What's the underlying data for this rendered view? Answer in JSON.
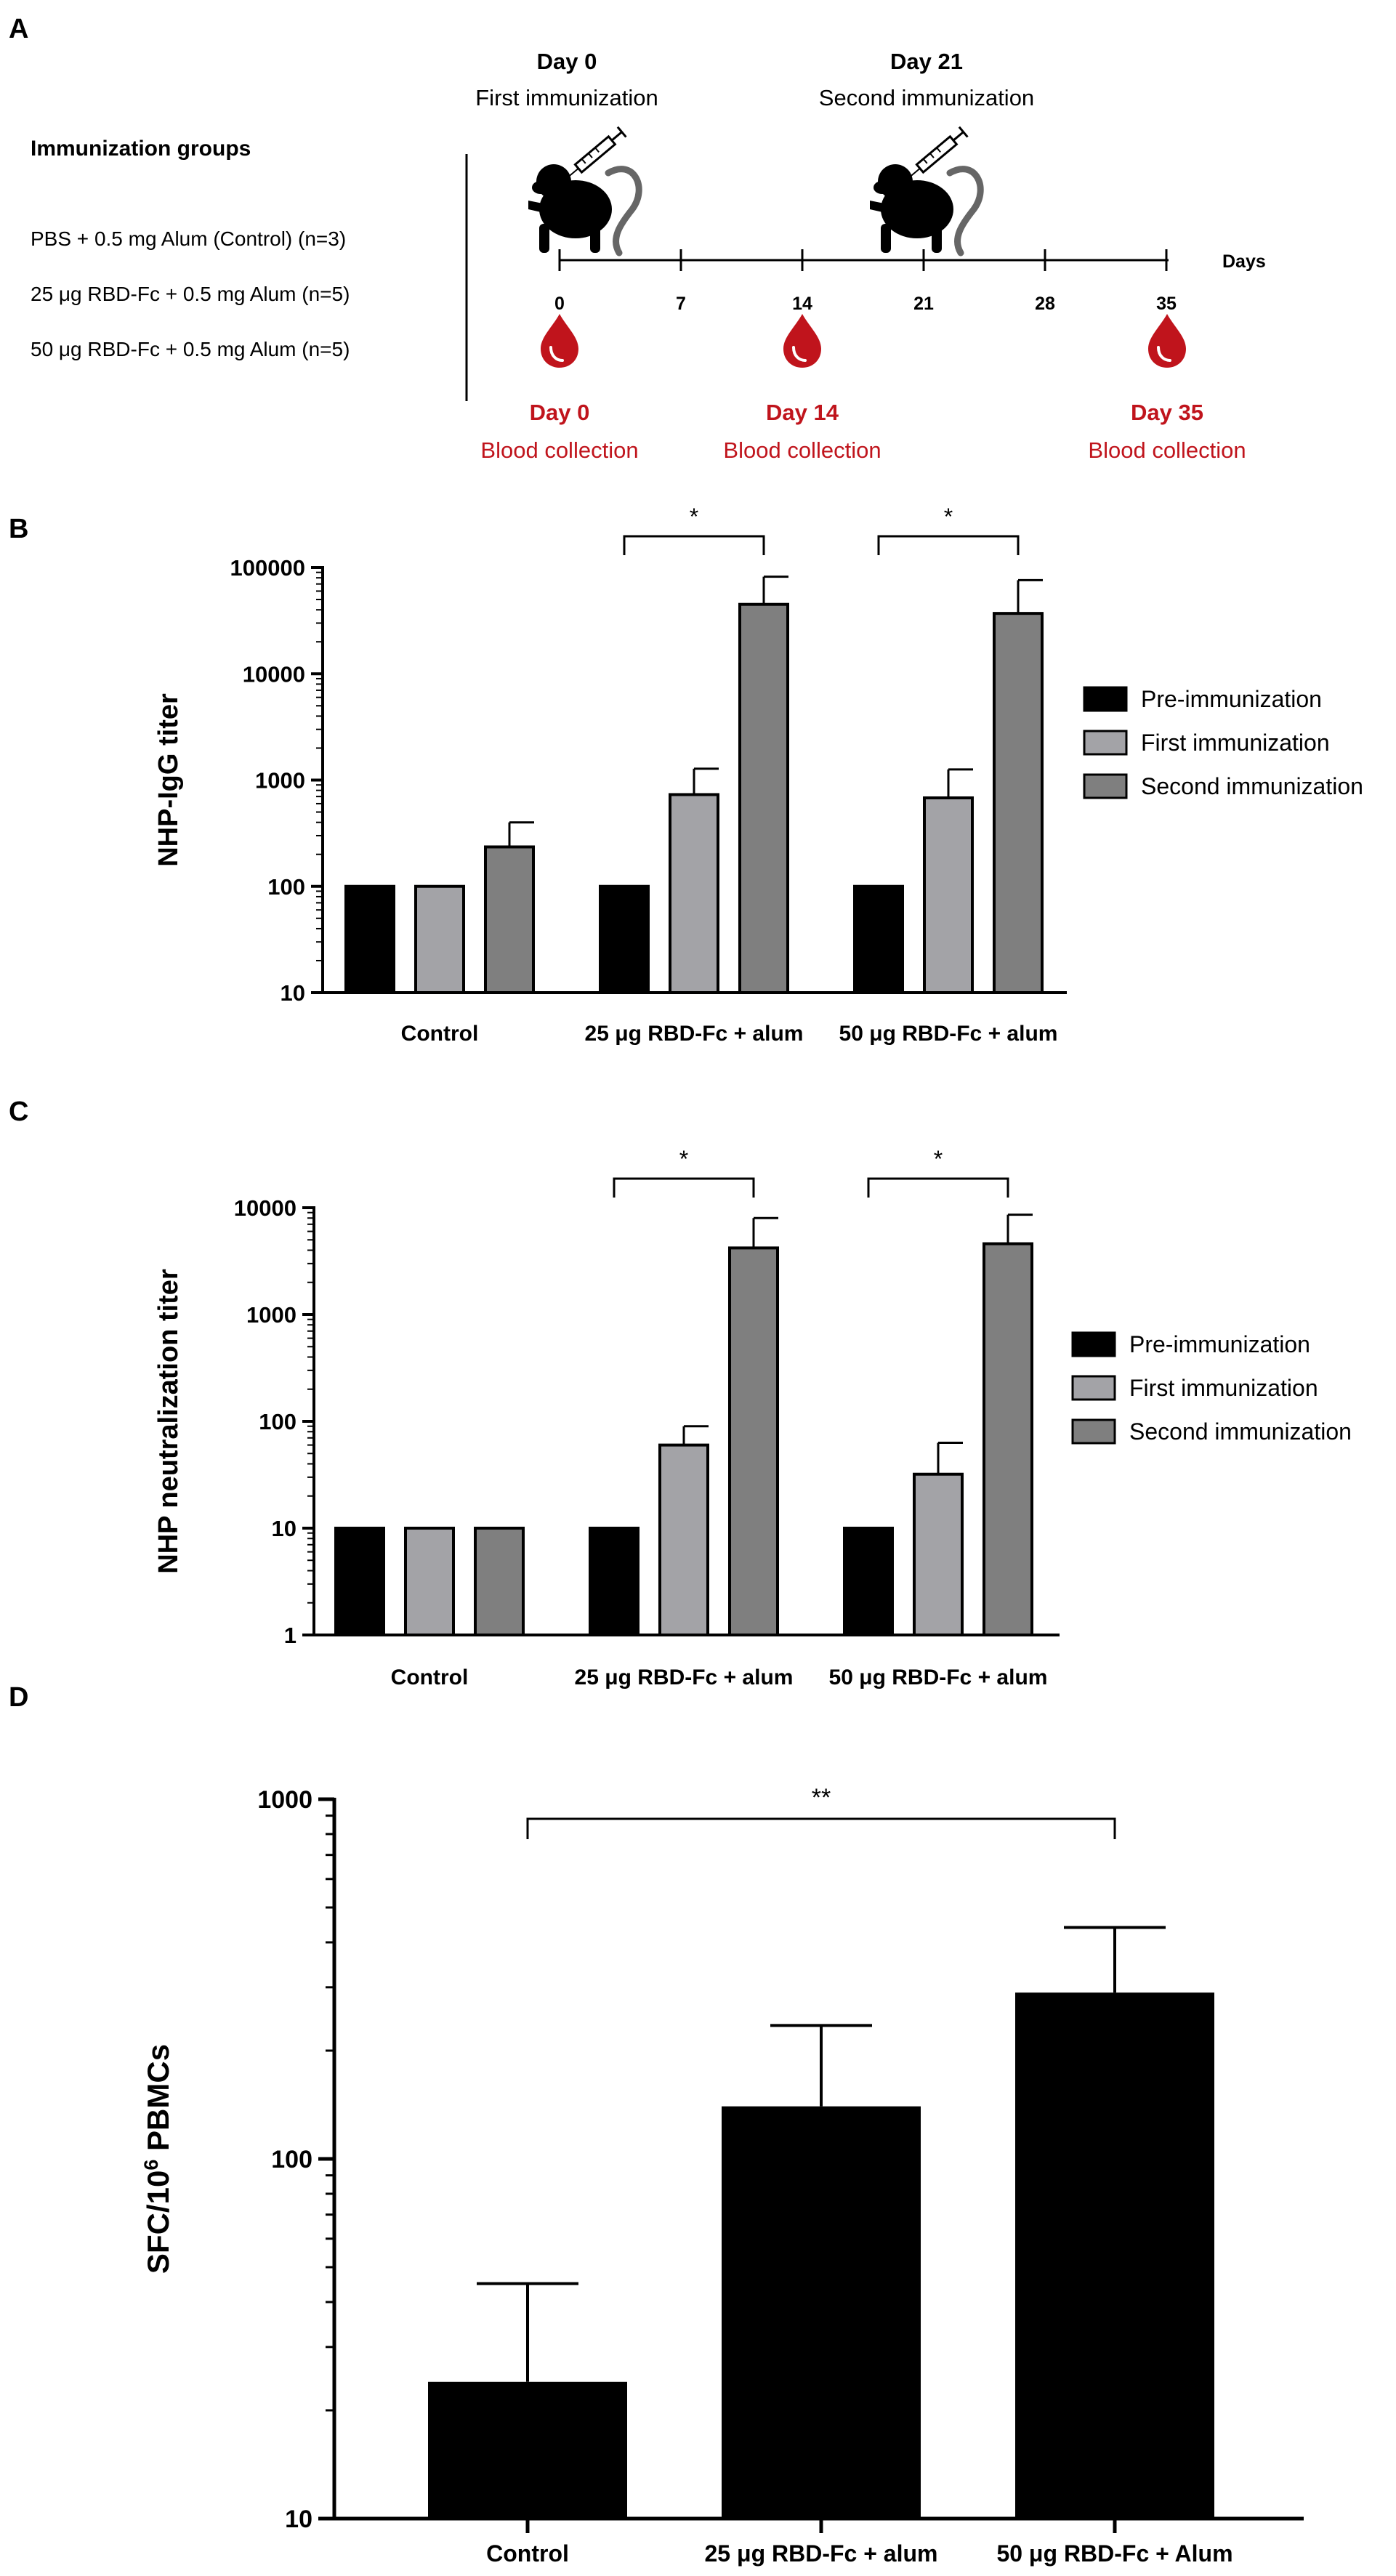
{
  "panels": {
    "a": {
      "letter": "A",
      "groups_title": "Immunization groups",
      "groups": [
        "PBS + 0.5 mg Alum (Control) (n=3)",
        "25 μg RBD-Fc + 0.5 mg Alum (n=5)",
        "50 μg RBD-Fc + 0.5 mg Alum (n=5)"
      ],
      "immunizations": [
        {
          "day": "Day 0",
          "label": "First immunization"
        },
        {
          "day": "Day 21",
          "label": "Second immunization"
        }
      ],
      "timeline_ticks": [
        "0",
        "7",
        "14",
        "21",
        "28",
        "35"
      ],
      "timeline_unit": "Days",
      "collections": [
        {
          "day": "Day 0",
          "label": "Blood collection"
        },
        {
          "day": "Day 14",
          "label": "Blood collection"
        },
        {
          "day": "Day 35",
          "label": "Blood collection"
        }
      ],
      "icons": [
        "monkey-syringe-icon",
        "blood-drop-icon"
      ],
      "colors": {
        "blood": "#c0141c"
      }
    },
    "b": {
      "letter": "B"
    },
    "c": {
      "letter": "C"
    },
    "d": {
      "letter": "D"
    }
  },
  "chart_data": [
    {
      "type": "bar",
      "scale": "log",
      "ylabel": "NHP-IgG titer",
      "ylim": [
        10,
        100000
      ],
      "yticks": [
        "10",
        "100",
        "1000",
        "10000",
        "100000"
      ],
      "categories": [
        "Control",
        "25 μg RBD-Fc + alum",
        "50 μg RBD-Fc + alum"
      ],
      "series": [
        {
          "name": "Pre-immunization",
          "color": "#000000",
          "values": [
            100,
            100,
            100
          ],
          "errors": [
            null,
            null,
            null
          ]
        },
        {
          "name": "First immunization",
          "color": "#a3a3a7",
          "values": [
            100,
            730,
            680
          ],
          "errors": [
            null,
            1280,
            1260
          ]
        },
        {
          "name": "Second immunization",
          "color": "#7f7f7f",
          "values": [
            235,
            45000,
            37000
          ],
          "errors": [
            400,
            82000,
            76000
          ]
        }
      ],
      "significance": [
        {
          "group": 1,
          "label": "*"
        },
        {
          "group": 2,
          "label": "*"
        }
      ],
      "legend": "right"
    },
    {
      "type": "bar",
      "scale": "log",
      "ylabel": "NHP neutralization titer",
      "ylim": [
        1,
        10000
      ],
      "yticks": [
        "1",
        "10",
        "100",
        "1000",
        "10000"
      ],
      "categories": [
        "Control",
        "25 μg RBD-Fc + alum",
        "50 μg RBD-Fc + alum"
      ],
      "series": [
        {
          "name": "Pre-immunization",
          "color": "#000000",
          "values": [
            10,
            10,
            10
          ],
          "errors": [
            null,
            null,
            null
          ]
        },
        {
          "name": "First immunization",
          "color": "#a3a3a7",
          "values": [
            10,
            60,
            32
          ],
          "errors": [
            null,
            90,
            63
          ]
        },
        {
          "name": "Second immunization",
          "color": "#7f7f7f",
          "values": [
            10,
            4200,
            4600
          ],
          "errors": [
            null,
            8000,
            8600
          ]
        }
      ],
      "significance": [
        {
          "group": 1,
          "label": "*"
        },
        {
          "group": 2,
          "label": "*"
        }
      ],
      "legend": "right"
    },
    {
      "type": "bar",
      "scale": "log",
      "ylabel_main": "SFC/10",
      "ylabel_sup": "6",
      "ylabel_tail": " PBMCs",
      "ylim": [
        10,
        1000
      ],
      "yticks": [
        "10",
        "100",
        "1000"
      ],
      "categories": [
        "Control",
        "25 μg RBD-Fc + alum",
        "50 μg RBD-Fc + Alum"
      ],
      "series": [
        {
          "name": "SFC",
          "color": "#000000",
          "values": [
            24,
            140,
            290
          ],
          "errors": [
            45,
            235,
            440
          ]
        }
      ],
      "significance": [
        {
          "from": 0,
          "to": 2,
          "label": "**"
        }
      ]
    }
  ]
}
